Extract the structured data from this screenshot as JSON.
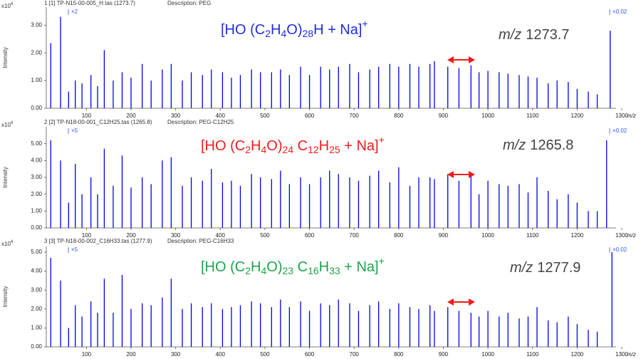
{
  "chart_data": [
    {
      "type": "stem",
      "header": "1 [1] TP-N15-00-005_H.tas (1273.7)",
      "description": "Description: PEG",
      "y_scale": [
        "x10",
        "4"
      ],
      "ylabel": "Intensity",
      "xlabel": "m/z",
      "zoom_left": "×2",
      "zoom_right": "×0.02",
      "formula": [
        "[HO (C",
        "2",
        "H",
        "4",
        "O)",
        "28",
        "H + Na]",
        "+"
      ],
      "formula_color": "#1f2ee0",
      "mz_label": [
        "m/z",
        "1273.7"
      ],
      "color": "#0000ee",
      "xlim": [
        10,
        1300
      ],
      "xticks": [
        100,
        200,
        300,
        400,
        500,
        600,
        700,
        800,
        900,
        1000,
        1100,
        1200,
        1300
      ],
      "ylim": [
        0,
        3.65
      ],
      "yticks": [
        {
          "value": 0,
          "label": "0.00"
        },
        {
          "value": 1,
          "label": "1.00"
        },
        {
          "value": 2,
          "label": "2.00"
        },
        {
          "value": 3,
          "label": "3.00"
        }
      ],
      "x": [
        20,
        42,
        60,
        75,
        90,
        110,
        125,
        140,
        160,
        180,
        200,
        225,
        245,
        270,
        290,
        315,
        335,
        360,
        380,
        405,
        425,
        445,
        470,
        490,
        515,
        535,
        555,
        580,
        600,
        625,
        645,
        665,
        690,
        710,
        735,
        755,
        780,
        800,
        825,
        845,
        870,
        880,
        910,
        935,
        962,
        980,
        1000,
        1025,
        1045,
        1070,
        1090,
        1110,
        1135,
        1155,
        1180,
        1200,
        1225,
        1245,
        1274
      ],
      "values": [
        2.35,
        3.3,
        0.6,
        1.0,
        0.9,
        1.2,
        0.8,
        2.1,
        1.0,
        1.3,
        1.1,
        1.6,
        1.0,
        1.4,
        1.6,
        1.0,
        1.3,
        1.2,
        1.4,
        1.3,
        1.1,
        1.2,
        1.4,
        1.3,
        1.3,
        1.4,
        1.2,
        1.5,
        1.2,
        1.5,
        1.4,
        1.5,
        1.6,
        1.3,
        1.4,
        1.5,
        1.6,
        1.5,
        1.6,
        1.5,
        1.6,
        1.7,
        1.5,
        1.45,
        1.55,
        1.3,
        1.35,
        1.3,
        1.25,
        1.2,
        1.15,
        1.1,
        0.9,
        1.0,
        0.95,
        0.7,
        0.6,
        0.5,
        2.8
      ]
    },
    {
      "type": "stem",
      "header": "2 [2] TP-N18-00-001_C12H25.tas (1265.8)",
      "description": "Description: PEG-C12H25",
      "y_scale": [
        "x10",
        "4"
      ],
      "ylabel": "Intensity",
      "xlabel": "m/z",
      "zoom_left": "×5",
      "zoom_right": "×0.02",
      "formula": [
        "[HO (C",
        "2",
        "H",
        "4",
        "O)",
        "24",
        "  C",
        "12",
        "H",
        "25",
        " + Na]",
        "+"
      ],
      "formula_color": "#ee1c1c",
      "mz_label": [
        "m/z",
        "1265.8"
      ],
      "color": "#0000ee",
      "xlim": [
        10,
        1300
      ],
      "xticks": [
        100,
        200,
        300,
        400,
        500,
        600,
        700,
        800,
        900,
        1000,
        1100,
        1200,
        1300
      ],
      "ylim": [
        0,
        6.0
      ],
      "yticks": [
        {
          "value": 0,
          "label": "0.00"
        },
        {
          "value": 1,
          "label": "1.00"
        },
        {
          "value": 2,
          "label": "2.00"
        },
        {
          "value": 3,
          "label": "3.00"
        },
        {
          "value": 4,
          "label": "4.00"
        },
        {
          "value": 5,
          "label": "5.00"
        }
      ],
      "x": [
        20,
        42,
        60,
        75,
        90,
        110,
        125,
        140,
        160,
        180,
        200,
        225,
        245,
        270,
        290,
        315,
        335,
        360,
        380,
        405,
        425,
        445,
        470,
        490,
        515,
        535,
        555,
        580,
        600,
        625,
        645,
        665,
        690,
        710,
        735,
        755,
        780,
        800,
        825,
        845,
        870,
        880,
        910,
        935,
        962,
        980,
        1000,
        1025,
        1045,
        1070,
        1090,
        1110,
        1135,
        1155,
        1180,
        1200,
        1225,
        1245,
        1266
      ],
      "values": [
        5.2,
        4.0,
        1.5,
        3.8,
        2.0,
        3.0,
        2.0,
        4.7,
        2.5,
        4.3,
        2.4,
        3.0,
        2.6,
        4.0,
        4.2,
        2.5,
        3.0,
        2.8,
        3.5,
        2.7,
        2.8,
        2.5,
        3.2,
        3.0,
        2.9,
        3.4,
        2.6,
        3.0,
        2.6,
        3.0,
        3.4,
        3.2,
        3.0,
        2.8,
        3.1,
        3.4,
        2.7,
        3.6,
        2.5,
        3.0,
        3.0,
        2.9,
        3.2,
        2.8,
        3.2,
        2.0,
        2.8,
        2.6,
        2.5,
        2.6,
        2.1,
        3.0,
        2.2,
        1.7,
        2.0,
        1.5,
        1.0,
        1.0,
        5.2
      ]
    },
    {
      "type": "stem",
      "header": "3 [3] TP-N18-00-002_C16H33.tas (1277.9)",
      "description": "Description: PEG-C16H33",
      "y_scale": [
        "x10",
        "4"
      ],
      "ylabel": "Intensity",
      "xlabel": "m/z",
      "zoom_left": "×5",
      "zoom_right": "×0.02",
      "formula": [
        "[HO (C",
        "2",
        "H",
        "4",
        "O)",
        "23",
        "  C",
        "16",
        "H",
        "33",
        " + Na]",
        "+"
      ],
      "formula_color": "#1ea34b",
      "mz_label": [
        "m/z",
        "1277.9"
      ],
      "color": "#0000ee",
      "xlim": [
        10,
        1300
      ],
      "xticks": [
        100,
        200,
        300,
        400,
        500,
        600,
        700,
        800,
        900,
        1000,
        1100,
        1200,
        1300
      ],
      "ylim": [
        0,
        5.3
      ],
      "yticks": [
        {
          "value": 0,
          "label": "0.00"
        },
        {
          "value": 1,
          "label": "1.00"
        },
        {
          "value": 2,
          "label": "2.00"
        },
        {
          "value": 3,
          "label": "3.00"
        },
        {
          "value": 4,
          "label": "4.00"
        },
        {
          "value": 5,
          "label": "5.00"
        }
      ],
      "x": [
        20,
        42,
        60,
        75,
        90,
        110,
        125,
        140,
        160,
        180,
        200,
        225,
        245,
        270,
        290,
        315,
        335,
        360,
        380,
        405,
        425,
        445,
        470,
        490,
        515,
        535,
        555,
        580,
        600,
        625,
        645,
        665,
        690,
        710,
        735,
        755,
        780,
        800,
        825,
        845,
        870,
        880,
        910,
        935,
        962,
        980,
        1000,
        1025,
        1045,
        1070,
        1090,
        1110,
        1135,
        1155,
        1180,
        1200,
        1225,
        1245,
        1278
      ],
      "values": [
        4.7,
        3.5,
        1.0,
        2.2,
        1.6,
        2.4,
        1.8,
        3.6,
        1.8,
        3.8,
        2.0,
        2.3,
        2.2,
        2.6,
        3.6,
        2.0,
        2.3,
        2.1,
        2.3,
        2.0,
        2.1,
        2.2,
        2.4,
        2.3,
        2.1,
        2.5,
        2.1,
        2.4,
        1.9,
        2.3,
        2.2,
        2.5,
        2.3,
        1.9,
        2.2,
        2.4,
        2.0,
        2.3,
        2.1,
        2.0,
        2.2,
        1.9,
        2.1,
        1.9,
        1.8,
        1.6,
        1.9,
        1.6,
        1.8,
        1.5,
        1.6,
        2.1,
        1.4,
        1.3,
        1.6,
        1.2,
        0.9,
        0.8,
        5.0
      ]
    }
  ]
}
